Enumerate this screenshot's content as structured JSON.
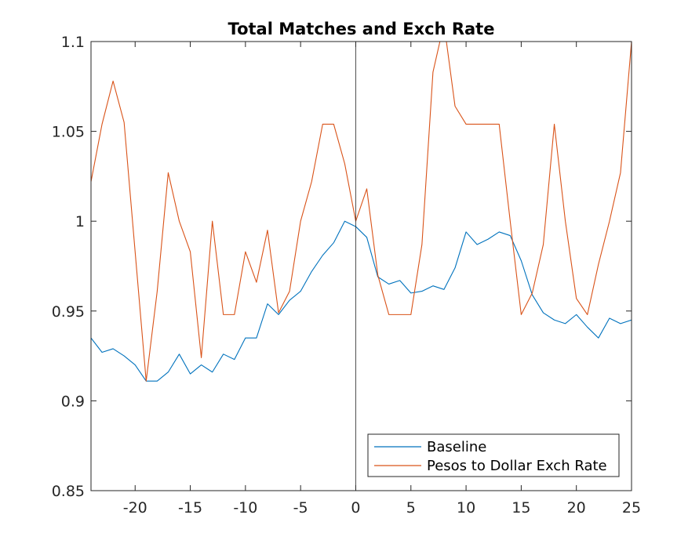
{
  "chart_data": {
    "type": "line",
    "title": "Total Matches and Exch Rate",
    "xlabel": "",
    "ylabel": "",
    "xlim": [
      -24,
      25
    ],
    "ylim": [
      0.85,
      1.1
    ],
    "xticks": [
      -20,
      -15,
      -10,
      -5,
      0,
      5,
      10,
      15,
      20,
      25
    ],
    "yticks": [
      0.85,
      0.9,
      0.95,
      1,
      1.05,
      1.1
    ],
    "xtick_labels": [
      "-20",
      "-15",
      "-10",
      "-5",
      "0",
      "5",
      "10",
      "15",
      "20",
      "25"
    ],
    "ytick_labels": [
      "0.85",
      "0.9",
      "0.95",
      "1",
      "1.05",
      "1.1"
    ],
    "vertical_line_at": 0,
    "grid": false,
    "legend_position": "bottom-right",
    "x": [
      -24,
      -23,
      -22,
      -21,
      -20,
      -19,
      -18,
      -17,
      -16,
      -15,
      -14,
      -13,
      -12,
      -11,
      -10,
      -9,
      -8,
      -7,
      -6,
      -5,
      -4,
      -3,
      -2,
      -1,
      0,
      1,
      2,
      3,
      4,
      5,
      6,
      7,
      8,
      9,
      10,
      11,
      12,
      13,
      14,
      15,
      16,
      17,
      18,
      19,
      20,
      21,
      22,
      23,
      24,
      25
    ],
    "series": [
      {
        "name": "Baseline",
        "color": "#0072BD",
        "values": [
          0.935,
          0.927,
          0.929,
          0.925,
          0.92,
          0.911,
          0.911,
          0.916,
          0.926,
          0.915,
          0.92,
          0.916,
          0.926,
          0.923,
          0.935,
          0.935,
          0.954,
          0.948,
          0.956,
          0.961,
          0.972,
          0.981,
          0.988,
          1.0,
          0.997,
          0.991,
          0.969,
          0.965,
          0.967,
          0.96,
          0.961,
          0.964,
          0.962,
          0.974,
          0.994,
          0.987,
          0.99,
          0.994,
          0.992,
          0.978,
          0.959,
          0.949,
          0.945,
          0.943,
          0.948,
          0.941,
          0.935,
          0.946,
          0.943,
          0.945
        ]
      },
      {
        "name": "Pesos to Dollar Exch Rate",
        "color": "#D95319",
        "values": [
          1.022,
          1.054,
          1.078,
          1.055,
          0.983,
          0.911,
          0.961,
          1.027,
          1.0,
          0.983,
          0.924,
          1.0,
          0.948,
          0.948,
          0.983,
          0.966,
          0.995,
          0.949,
          0.961,
          1.0,
          1.022,
          1.054,
          1.054,
          1.032,
          1.0,
          1.018,
          0.97,
          0.948,
          0.948,
          0.948,
          0.987,
          1.083,
          1.11,
          1.064,
          1.054,
          1.054,
          1.054,
          1.054,
          1.0,
          0.948,
          0.96,
          0.987,
          1.054,
          1.0,
          0.957,
          0.948,
          0.976,
          1.0,
          1.027,
          1.1
        ]
      }
    ]
  }
}
